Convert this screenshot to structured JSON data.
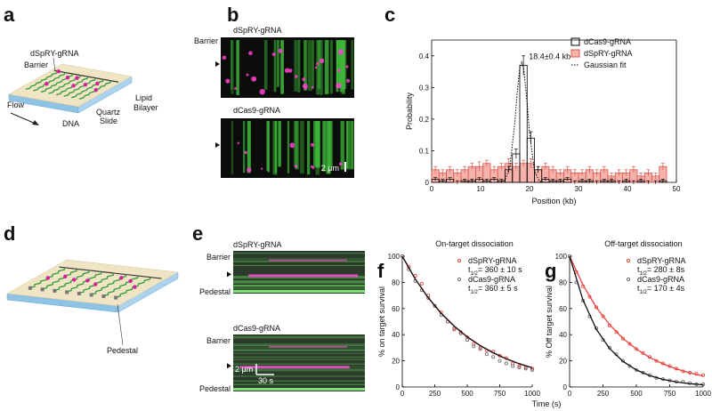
{
  "panel_labels": [
    "a",
    "b",
    "c",
    "d",
    "e",
    "f",
    "g"
  ],
  "schematic_a": {
    "gRNA": "dSpRY-gRNA",
    "barrier": "Barrier",
    "flow": "Flow",
    "dna": "DNA",
    "slide": [
      "Quartz",
      "Slide"
    ],
    "bilayer": [
      "Lipid",
      "Bilayer"
    ]
  },
  "schematic_d": {
    "pedestal": "Pedestal"
  },
  "image_b": {
    "top_label": "dSpRY-gRNA",
    "bottom_label": "dCas9-gRNA",
    "barrier": "Barrier",
    "scale": "2 μm"
  },
  "image_e": {
    "top_label": "dSpRY-gRNA",
    "bottom_label": "dCas9-gRNA",
    "barrier": [
      "Barrier",
      "Barrier"
    ],
    "pedestal": [
      "Pedestal",
      "Pedestal"
    ],
    "scale_length": "2 μm",
    "scale_time": "30 s"
  },
  "shared_x_label": "Time (s)",
  "chart_data": [
    {
      "type": "histogram",
      "x_label": "Position (kb)",
      "y_label": "Probability",
      "annotation": "18.4±0.4 kb",
      "xlim": [
        0,
        50
      ],
      "xticks": [
        0,
        10,
        20,
        30,
        40,
        50
      ],
      "ylim": [
        0,
        0.45
      ],
      "yticks": [
        0,
        0.1,
        0.2,
        0.3,
        0.4
      ],
      "bins": [
        0,
        1.5,
        3,
        4.5,
        6,
        7.5,
        9,
        10.5,
        12,
        13.5,
        15,
        16.5,
        18,
        19.5,
        21,
        22.5,
        24,
        25.5,
        27,
        28.5,
        30,
        31.5,
        33,
        34.5,
        36,
        37.5,
        39,
        40.5,
        42,
        43.5,
        45,
        46.5,
        48
      ],
      "series": [
        {
          "name": "dCas9-gRNA",
          "color": "#000000",
          "fill": "none",
          "values": [
            0.01,
            0.005,
            0.01,
            0,
            0.005,
            0.005,
            0.01,
            0.005,
            0.01,
            0.005,
            0.04,
            0.09,
            0.37,
            0.14,
            0.04,
            0.01,
            0.005,
            0.005,
            0.01,
            0,
            0.005,
            0.005,
            0,
            0.005,
            0.005,
            0,
            0.005,
            0,
            0.005,
            0,
            0,
            0.005
          ],
          "errors": [
            0.005,
            0.005,
            0.005,
            0.005,
            0.005,
            0.005,
            0.005,
            0.005,
            0.005,
            0.005,
            0.01,
            0.015,
            0.03,
            0.02,
            0.01,
            0.005,
            0.005,
            0.005,
            0.005,
            0.005,
            0.005,
            0.005,
            0.005,
            0.005,
            0.005,
            0.005,
            0.005,
            0.005,
            0.005,
            0.005,
            0.005,
            0.005
          ]
        },
        {
          "name": "dSpRY-gRNA",
          "color": "#d9574d",
          "fill": "#f6b3ac",
          "values": [
            0.04,
            0.03,
            0.04,
            0.03,
            0.04,
            0.05,
            0.05,
            0.06,
            0.04,
            0.05,
            0.06,
            0.05,
            0.06,
            0.06,
            0.04,
            0.05,
            0.04,
            0.03,
            0.04,
            0.03,
            0.03,
            0.04,
            0.03,
            0.04,
            0.02,
            0.03,
            0.03,
            0.04,
            0.02,
            0.03,
            0.02,
            0.05
          ],
          "errors": [
            0.01,
            0.01,
            0.01,
            0.01,
            0.01,
            0.01,
            0.015,
            0.01,
            0.01,
            0.01,
            0.015,
            0.01,
            0.01,
            0.015,
            0.01,
            0.01,
            0.01,
            0.01,
            0.01,
            0.01,
            0.01,
            0.01,
            0.01,
            0.01,
            0.01,
            0.01,
            0.01,
            0.01,
            0.01,
            0.01,
            0.01,
            0.01
          ]
        }
      ],
      "fit": {
        "name": "Gaussian fit",
        "color": "#000000",
        "style": "dotted",
        "x": [
          12,
          14,
          15,
          16,
          17,
          17.5,
          18,
          18.4,
          18.8,
          19.5,
          20,
          21,
          22,
          23,
          25
        ],
        "values": [
          0,
          0,
          0.007,
          0.051,
          0.19,
          0.29,
          0.36,
          0.38,
          0.36,
          0.25,
          0.156,
          0.036,
          0.004,
          0,
          0
        ]
      },
      "legend": "upper right"
    },
    {
      "type": "scatter",
      "title": "On-target dissociation",
      "y_label": "% on target survival",
      "xlim": [
        0,
        1000
      ],
      "xticks": [
        0,
        250,
        500,
        750,
        1000
      ],
      "ylim": [
        0,
        100
      ],
      "yticks": [
        0,
        20,
        40,
        60,
        80,
        100
      ],
      "x": [
        0,
        50,
        100,
        150,
        200,
        250,
        300,
        350,
        400,
        450,
        500,
        550,
        600,
        650,
        700,
        750,
        800,
        850,
        900,
        950,
        1000
      ],
      "fit_x": [
        0,
        100,
        200,
        300,
        400,
        500,
        600,
        700,
        800,
        900,
        1000
      ],
      "series": [
        {
          "name": "dSpRY-gRNA",
          "color": "#e8413c",
          "fit_color": "#e8413c",
          "half_life": {
            "t": "t",
            "sub": "1/2",
            "rest": "= 360 ± 10 s"
          },
          "values": [
            100,
            92,
            85,
            79,
            70,
            62,
            57,
            50,
            44,
            42,
            38,
            33,
            30,
            28,
            27,
            24,
            22,
            18,
            16,
            15,
            14
          ],
          "fit_values": [
            100,
            82.5,
            68.0,
            56.1,
            46.3,
            38.2,
            31.5,
            26.0,
            21.4,
            17.7,
            14.6
          ]
        },
        {
          "name": "dCas9-gRNA",
          "color": "#666666",
          "fit_color": "#111111",
          "half_life": {
            "t": "t",
            "sub": "1/2",
            "rest": "= 360 ± 5 s"
          },
          "values": [
            100,
            90,
            81,
            74,
            68,
            62,
            55,
            50,
            45,
            41,
            36,
            31,
            29,
            25,
            23,
            20,
            18,
            16,
            15,
            14,
            13
          ],
          "fit_values": [
            100,
            82.6,
            68.2,
            56.3,
            46.5,
            38.4,
            31.7,
            26.2,
            21.6,
            17.8,
            14.7
          ]
        }
      ]
    },
    {
      "type": "scatter",
      "title": "Off-target dissociation",
      "y_label": "% Off target survival",
      "xlim": [
        0,
        1000
      ],
      "xticks": [
        0,
        250,
        500,
        750,
        1000
      ],
      "ylim": [
        0,
        100
      ],
      "yticks": [
        0,
        20,
        40,
        60,
        80,
        100
      ],
      "x": [
        0,
        50,
        100,
        150,
        200,
        250,
        300,
        350,
        400,
        450,
        500,
        550,
        600,
        650,
        700,
        750,
        800,
        850,
        900,
        950,
        1000
      ],
      "fit_x": [
        0,
        100,
        200,
        300,
        400,
        500,
        600,
        700,
        800,
        900,
        1000
      ],
      "series": [
        {
          "name": "dSpRY-gRNA",
          "color": "#e8413c",
          "fit_color": "#e8413c",
          "half_life": {
            "t": "t",
            "sub": "1/2",
            "rest": "= 280 ± 8s"
          },
          "values": [
            100,
            88,
            77,
            69,
            61,
            54,
            47,
            42,
            37,
            33,
            29,
            26,
            23,
            20,
            18,
            16,
            14,
            12,
            11,
            10,
            9
          ],
          "fit_values": [
            100,
            78.1,
            60.9,
            47.6,
            37.1,
            29.0,
            22.6,
            17.7,
            13.8,
            10.8,
            8.4
          ]
        },
        {
          "name": "dCas9-gRNA",
          "color": "#666666",
          "fit_color": "#111111",
          "half_life": {
            "t": "t",
            "sub": "1/2",
            "rest": "= 170 ± 4s"
          },
          "values": [
            100,
            80,
            66,
            54,
            45,
            36,
            30,
            25,
            20,
            16,
            13,
            11,
            9,
            7,
            6,
            5,
            4,
            4,
            3,
            2,
            2
          ],
          "fit_values": [
            100,
            66.5,
            44.2,
            29.4,
            19.6,
            13.0,
            8.7,
            5.8,
            3.8,
            2.5,
            1.7
          ]
        }
      ]
    }
  ]
}
